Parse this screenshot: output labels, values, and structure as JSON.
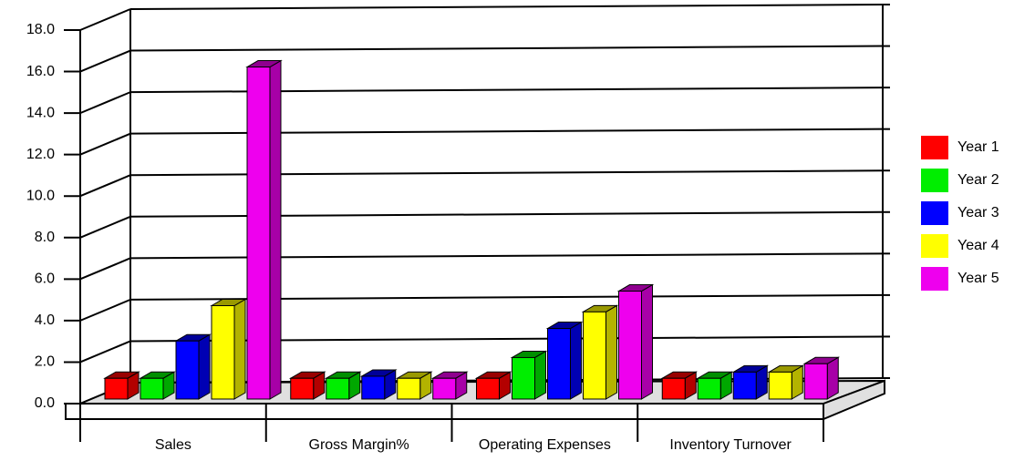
{
  "chart_data": {
    "type": "bar3d",
    "categories": [
      "Sales",
      "Gross Margin%",
      "Operating Expenses",
      "Inventory Turnover"
    ],
    "series": [
      {
        "name": "Year 1",
        "color": "#ff0000",
        "values": [
          1.0,
          1.0,
          1.0,
          1.0
        ]
      },
      {
        "name": "Year 2",
        "color": "#00ee00",
        "values": [
          1.0,
          1.0,
          2.0,
          1.0
        ]
      },
      {
        "name": "Year 3",
        "color": "#0000ff",
        "values": [
          2.8,
          1.1,
          3.4,
          1.3
        ]
      },
      {
        "name": "Year 4",
        "color": "#ffff00",
        "values": [
          4.5,
          1.0,
          4.2,
          1.3
        ]
      },
      {
        "name": "Year 5",
        "color": "#ee00ee",
        "values": [
          16.0,
          1.0,
          5.2,
          1.7
        ]
      }
    ],
    "ylim": [
      0,
      18
    ],
    "yticks": [
      {
        "value": 0,
        "label": "0.0"
      },
      {
        "value": 2,
        "label": "2.0"
      },
      {
        "value": 4,
        "label": "4.0"
      },
      {
        "value": 6,
        "label": "6.0"
      },
      {
        "value": 8,
        "label": "8.0"
      },
      {
        "value": 10,
        "label": "10.0"
      },
      {
        "value": 12,
        "label": "12.0"
      },
      {
        "value": 14,
        "label": "14.0"
      },
      {
        "value": 16,
        "label": "16.0"
      },
      {
        "value": 18,
        "label": "18.0"
      }
    ],
    "grid": true,
    "legend": "right"
  }
}
